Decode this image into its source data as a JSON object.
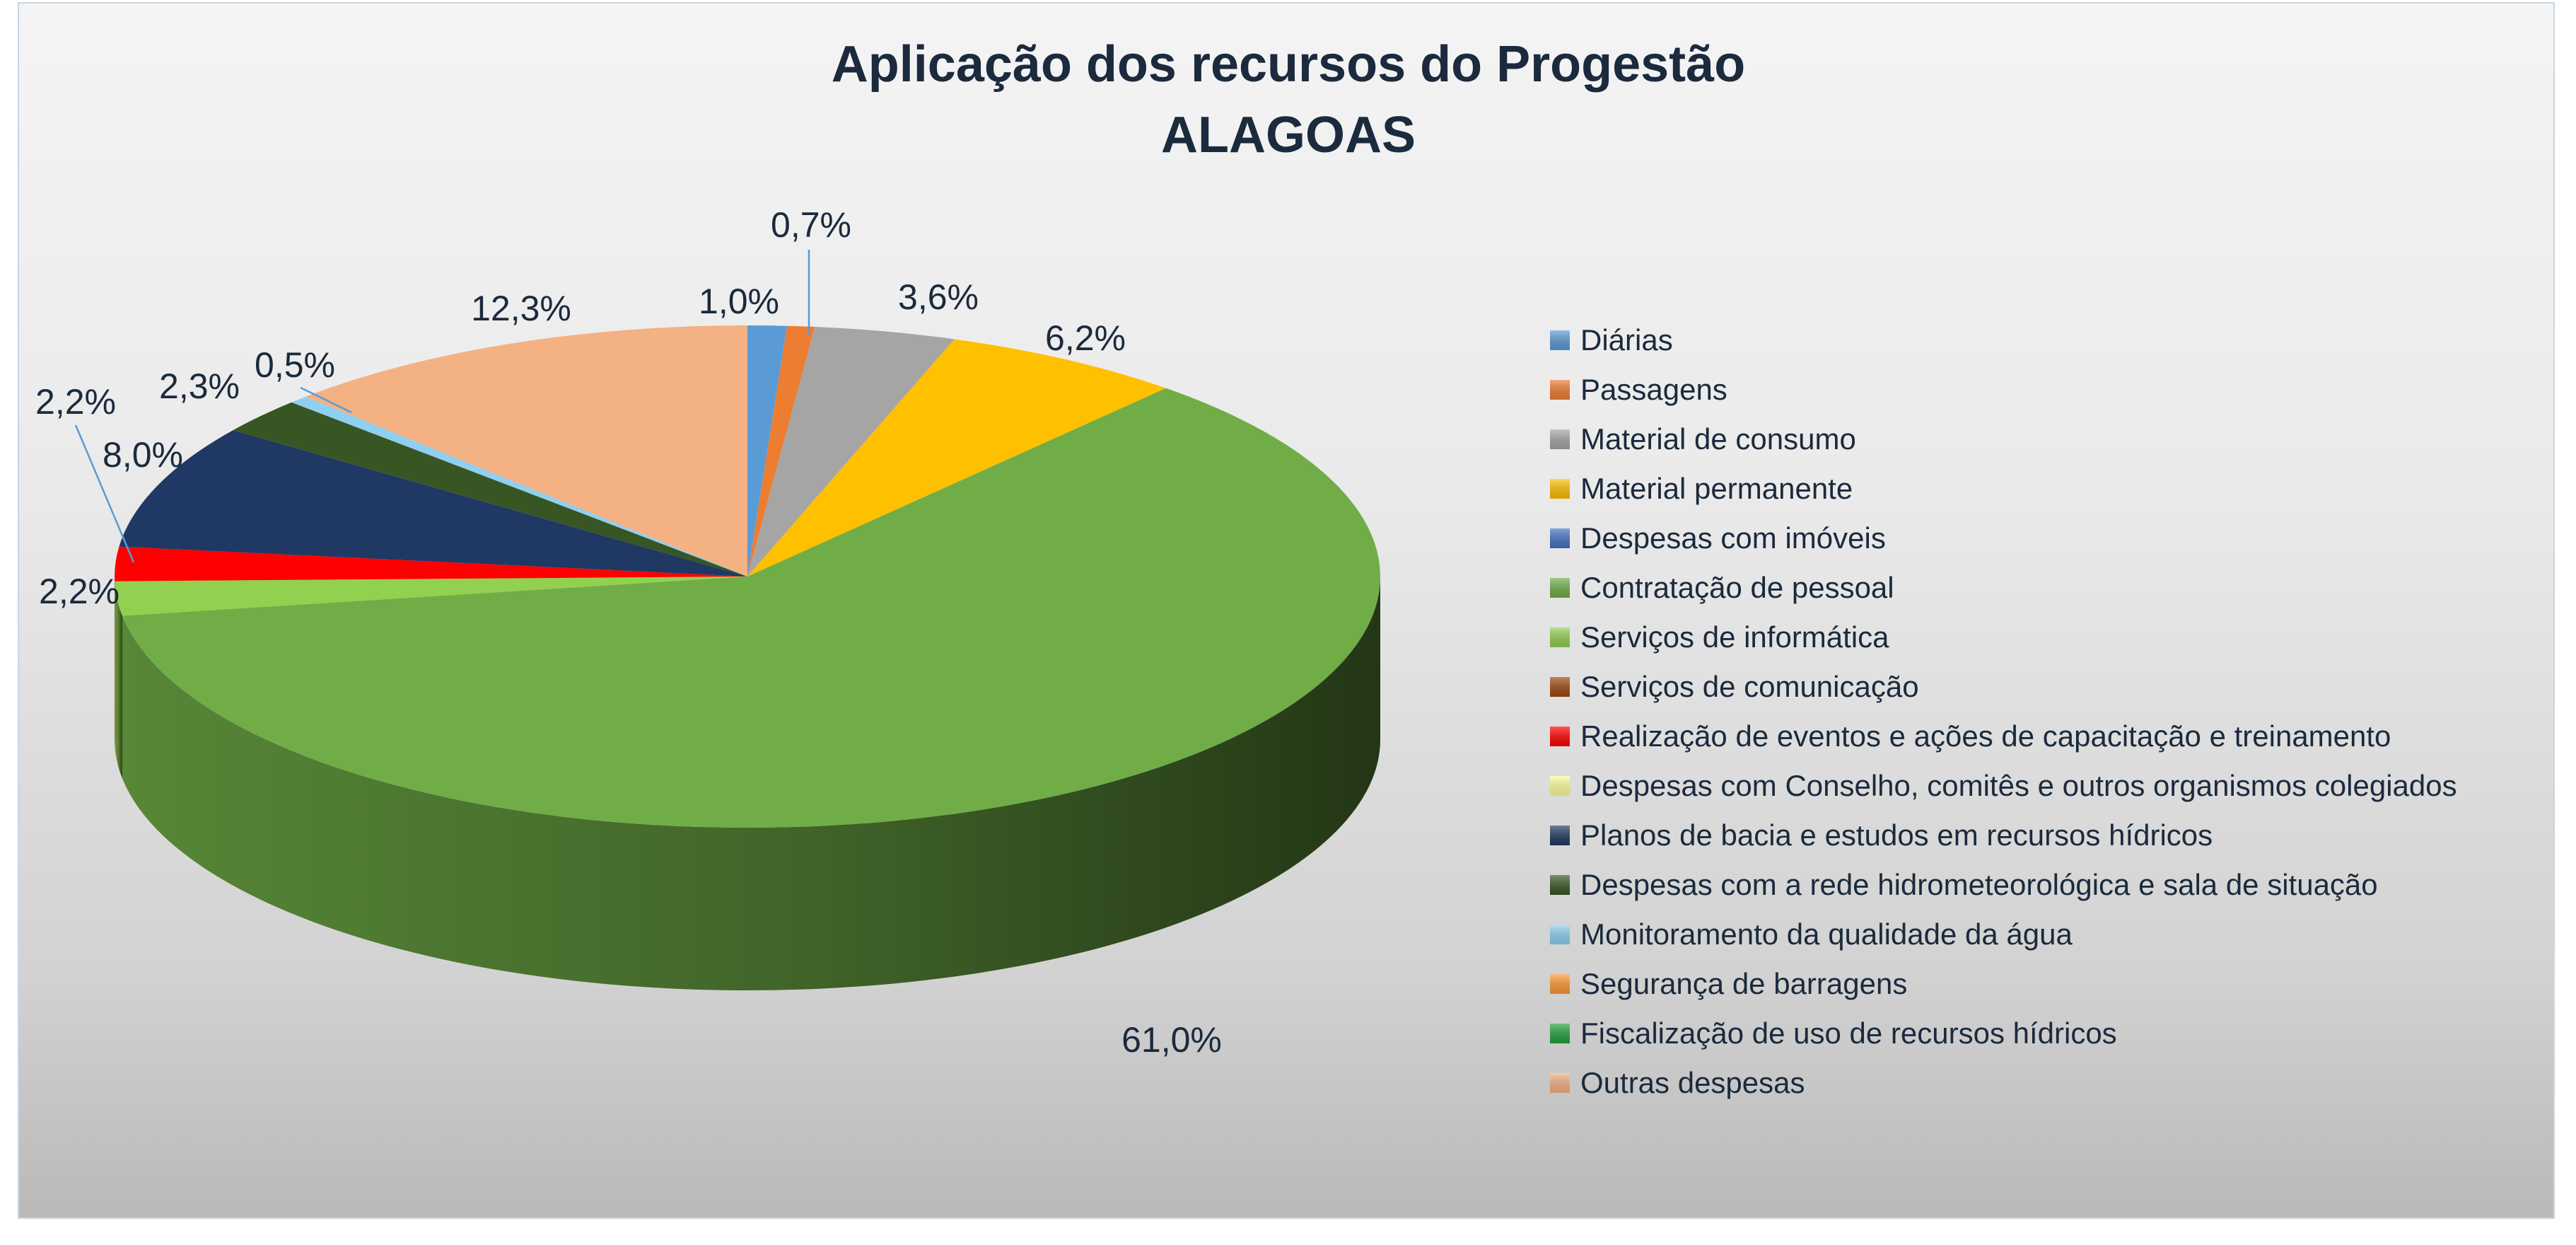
{
  "chart_data": {
    "type": "pie",
    "title": "Aplicação dos recursos do Progestão",
    "subtitle": "ALAGOAS",
    "legend_position": "right",
    "slices": [
      {
        "label": "Diárias",
        "value": 1.0,
        "value_label": "1,0%",
        "color": "#5b9bd5"
      },
      {
        "label": "Passagens",
        "value": 0.7,
        "value_label": "0,7%",
        "color": "#ed7d31"
      },
      {
        "label": "Material de consumo",
        "value": 3.6,
        "value_label": "3,6%",
        "color": "#a5a5a5"
      },
      {
        "label": "Material permanente",
        "value": 6.2,
        "value_label": "6,2%",
        "color": "#ffc000"
      },
      {
        "label": "Despesas com imóveis",
        "value": 0,
        "value_label": "",
        "color": "#4472c4"
      },
      {
        "label": "Contratação de pessoal",
        "value": 61.0,
        "value_label": "61,0%",
        "color": "#70ad47"
      },
      {
        "label": "Serviços de informática",
        "value": 2.2,
        "value_label": "2,2%",
        "color": "#92d050"
      },
      {
        "label": "Serviços de comunicação",
        "value": 0,
        "value_label": "",
        "color": "#9e480e"
      },
      {
        "label": "Realização de eventos e ações de capacitação e treinamento",
        "value": 2.2,
        "value_label": "2,2%",
        "color": "#ff0000"
      },
      {
        "label": "Despesas com Conselho, comitês e outros organismos colegiados",
        "value": 0,
        "value_label": "",
        "color": "#ffff99"
      },
      {
        "label": "Planos de bacia e estudos em recursos hídricos",
        "value": 8.0,
        "value_label": "8,0%",
        "color": "#203864"
      },
      {
        "label": "Despesas com a rede hidrometeorológica e sala de situação",
        "value": 2.3,
        "value_label": "2,3%",
        "color": "#375623"
      },
      {
        "label": "Monitoramento da qualidade da água",
        "value": 0.5,
        "value_label": "0,5%",
        "color": "#8fd0f0"
      },
      {
        "label": "Segurança de barragens",
        "value": 0,
        "value_label": "",
        "color": "#ff9933"
      },
      {
        "label": "Fiscalização de uso de recursos hídricos",
        "value": 0,
        "value_label": "",
        "color": "#22a03a"
      },
      {
        "label": "Outras despesas",
        "value": 12.3,
        "value_label": "12,3%",
        "color": "#f4b183"
      }
    ]
  }
}
